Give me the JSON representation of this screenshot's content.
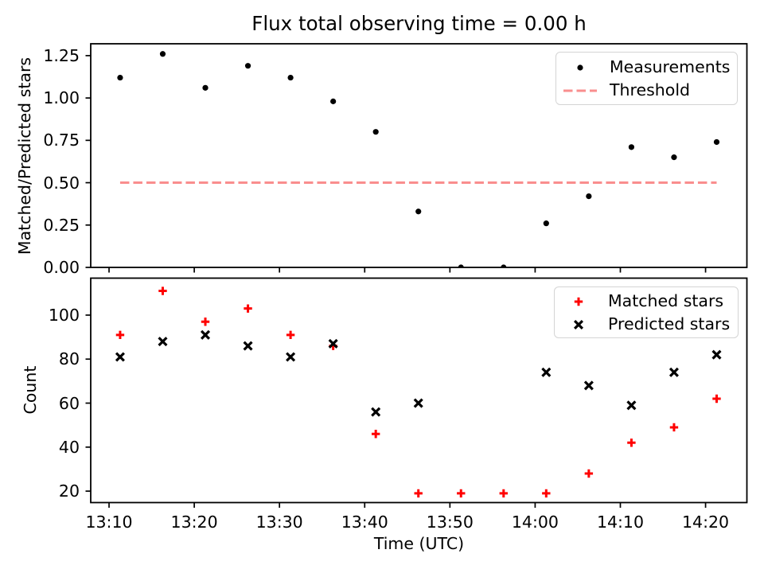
{
  "x_axis": {
    "label": "Time (UTC)",
    "tick_labels": [
      "13:10",
      "13:20",
      "13:30",
      "13:40",
      "13:50",
      "14:00",
      "14:10",
      "14:20"
    ],
    "tick_minutes": [
      10,
      20,
      30,
      40,
      50,
      60,
      70,
      80
    ],
    "xlim_minutes": [
      7.85,
      84.85
    ],
    "point_minutes": [
      11.3,
      16.3,
      21.3,
      26.3,
      31.3,
      36.3,
      41.3,
      46.3,
      51.3,
      56.3,
      61.3,
      66.3,
      71.3,
      76.3,
      81.3
    ],
    "point_times": [
      "13:11",
      "13:16",
      "13:21",
      "13:26",
      "13:31",
      "13:36",
      "13:41",
      "13:46",
      "13:51",
      "13:56",
      "14:01",
      "14:06",
      "14:11",
      "14:16",
      "14:21"
    ]
  },
  "chart_data": [
    {
      "type": "scatter",
      "panel": "top",
      "title": "Flux total observing time = 0.00 h",
      "ylabel": "Matched/Predicted stars",
      "ylim": [
        0,
        1.32
      ],
      "y_ticks": [
        0,
        0.25,
        0.5,
        0.75,
        1.0,
        1.25
      ],
      "y_tick_labels": [
        "0.00",
        "0.25",
        "0.50",
        "0.75",
        "1.00",
        "1.25"
      ],
      "grid": false,
      "legend_position": "upper right",
      "series": [
        {
          "name": "Measurements",
          "marker": "dot",
          "color": "#000000",
          "values": [
            1.12,
            1.26,
            1.06,
            1.19,
            1.12,
            0.98,
            0.8,
            0.33,
            0.0,
            0.0,
            0.26,
            0.42,
            0.71,
            0.65,
            0.74
          ]
        },
        {
          "name": "Threshold",
          "marker": "dashed-line",
          "color": "#f98e8e",
          "threshold_value": 0.5
        }
      ]
    },
    {
      "type": "scatter",
      "panel": "bottom",
      "title": "",
      "ylabel": "Count",
      "ylim": [
        14.8,
        116.8
      ],
      "y_ticks": [
        20,
        40,
        60,
        80,
        100
      ],
      "y_tick_labels": [
        "20",
        "40",
        "60",
        "80",
        "100"
      ],
      "grid": false,
      "legend_position": "upper right",
      "series": [
        {
          "name": "Matched stars",
          "marker": "plus",
          "color": "#ff0000",
          "values": [
            91,
            111,
            97,
            103,
            91,
            86,
            46,
            19,
            19,
            19,
            19,
            28,
            42,
            49,
            62
          ]
        },
        {
          "name": "Predicted stars",
          "marker": "x",
          "color": "#000000",
          "values": [
            81,
            88,
            91,
            86,
            81,
            87,
            56,
            60,
            null,
            null,
            74,
            68,
            59,
            74,
            82
          ]
        }
      ]
    }
  ]
}
